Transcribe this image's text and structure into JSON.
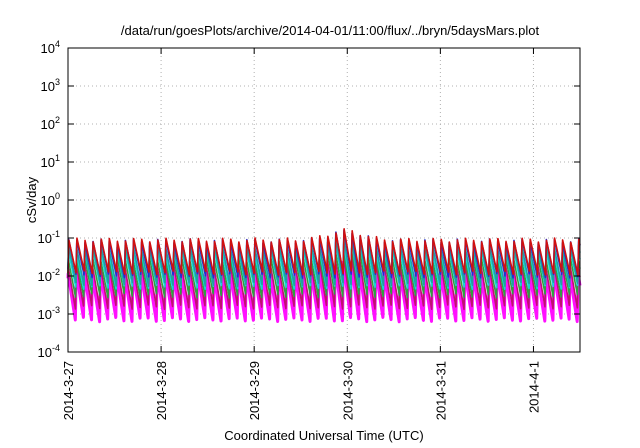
{
  "chart_data": {
    "type": "line",
    "title": "/data/run/goesPlots/archive/2014-04-01/11:00/flux/../bryn/5daysMars.plot",
    "xlabel": "Coordinated Universal Time (UTC)",
    "ylabel": "cSv/day",
    "yscale": "log",
    "ylim": [
      0.0001,
      10000
    ],
    "xlim": [
      "2014-03-27T00:00",
      "2014-04-01T12:00"
    ],
    "grid": true,
    "x_ticks": [
      {
        "date": "2014-03-27",
        "label": "2014-3-27"
      },
      {
        "date": "2014-03-28",
        "label": "2014-3-28"
      },
      {
        "date": "2014-03-29",
        "label": "2014-3-29"
      },
      {
        "date": "2014-03-30",
        "label": "2014-3-30"
      },
      {
        "date": "2014-03-31",
        "label": "2014-3-31"
      },
      {
        "date": "2014-04-01",
        "label": "2014-4-1"
      }
    ],
    "y_ticks": [
      {
        "value": 0.0001,
        "base": "10",
        "exp": "-4"
      },
      {
        "value": 0.001,
        "base": "10",
        "exp": "-3"
      },
      {
        "value": 0.01,
        "base": "10",
        "exp": "-2"
      },
      {
        "value": 0.1,
        "base": "10",
        "exp": "-1"
      },
      {
        "value": 1,
        "base": "10",
        "exp": "0"
      },
      {
        "value": 10,
        "base": "10",
        "exp": "1"
      },
      {
        "value": 100,
        "base": "10",
        "exp": "2"
      },
      {
        "value": 1000,
        "base": "10",
        "exp": "3"
      },
      {
        "value": 10000,
        "base": "10",
        "exp": "4"
      }
    ],
    "series_colors": [
      "#d01010",
      "#2030d0",
      "#20a0a0",
      "#10d8d8",
      "#30a040",
      "#c01070",
      "#ff10ff"
    ],
    "series_levels": [
      {
        "peak": 0.09,
        "trough": 0.012
      },
      {
        "peak": 0.085,
        "trough": 0.01
      },
      {
        "peak": 0.06,
        "trough": 0.006
      },
      {
        "peak": 0.045,
        "trough": 0.005
      },
      {
        "peak": 0.03,
        "trough": 0.003
      },
      {
        "peak": 0.02,
        "trough": 0.0015
      },
      {
        "peak": 0.012,
        "trough": 0.0007
      }
    ],
    "orbits_per_day": 11.5
  }
}
